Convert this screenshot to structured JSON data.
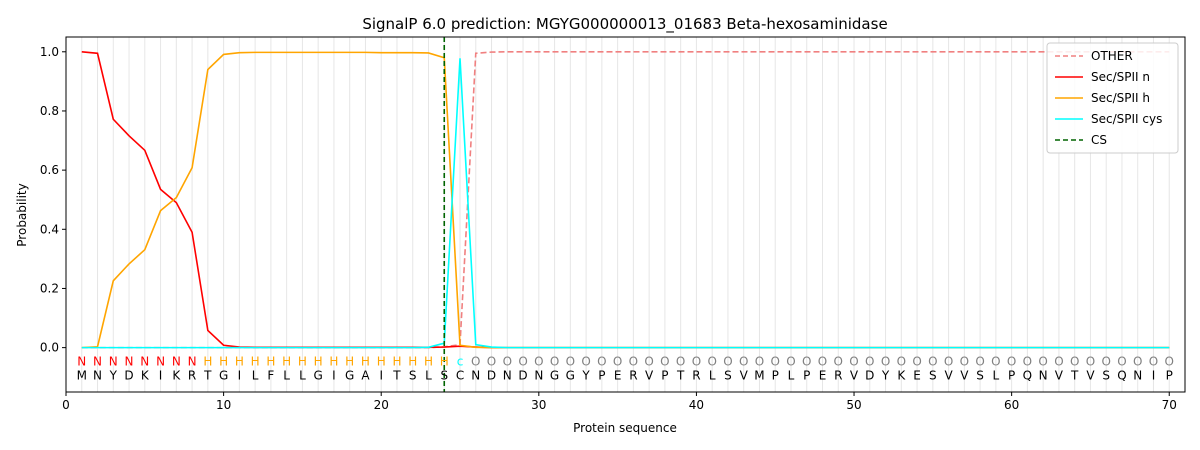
{
  "chart_data": {
    "type": "line",
    "title": "SignalP 6.0 prediction: MGYG000000013_01683 Beta-hexosaminidase",
    "xlabel": "Protein sequence",
    "ylabel": "Probability",
    "xlim": [
      0,
      71
    ],
    "ylim": [
      -0.15,
      1.05
    ],
    "x_ticks": [
      0,
      10,
      20,
      30,
      40,
      50,
      60,
      70
    ],
    "y_ticks": [
      0.0,
      0.2,
      0.4,
      0.6,
      0.8,
      1.0
    ],
    "y_tick_labels": [
      "0.0",
      "0.2",
      "0.4",
      "0.6",
      "0.8",
      "1.0"
    ],
    "grid": "vertical lines at every residue",
    "legend_position": "top-right",
    "sequence": "MNYDKIKRTGILFLLGIGAITSLSCNDNDNGGYPERVPTRLSVMPLPERVDYKESVVSLPQNVTVSQNIP",
    "labels": "NNNNNNNNHHHHHHHHHHHHHHHHcOOOOOOOOOOOOOOOOOOOOOOOOOOOOOOOOOOOOOOOOOOOOO",
    "label_colors": {
      "N": "#ff0000",
      "H": "#ffa500",
      "c": "#00ffff",
      "O": "#808080"
    },
    "cleavage_site": 24,
    "series": [
      {
        "name": "OTHER",
        "color": "#f08080",
        "dash": true,
        "values": [
          0.0,
          0.0,
          0.0,
          0.0,
          0.0,
          0.0,
          0.0,
          0.0,
          0.0,
          0.0,
          0.0,
          0.0,
          0.0,
          0.0,
          0.0,
          0.0,
          0.0,
          0.0,
          0.0,
          0.0,
          0.0,
          0.0,
          0.0,
          0.003,
          0.01,
          0.995,
          0.999,
          1.0,
          1.0,
          1.0,
          1.0,
          1.0,
          1.0,
          1.0,
          1.0,
          1.0,
          1.0,
          1.0,
          1.0,
          1.0,
          1.0,
          1.0,
          1.0,
          1.0,
          1.0,
          1.0,
          1.0,
          1.0,
          1.0,
          1.0,
          1.0,
          1.0,
          1.0,
          1.0,
          1.0,
          1.0,
          1.0,
          1.0,
          1.0,
          1.0,
          1.0,
          1.0,
          1.0,
          1.0,
          1.0,
          1.0,
          1.0,
          1.0,
          1.0,
          1.0
        ]
      },
      {
        "name": "Sec/SPII n",
        "color": "#ff0000",
        "dash": false,
        "values": [
          1.0,
          0.995,
          0.772,
          0.716,
          0.667,
          0.535,
          0.49,
          0.39,
          0.058,
          0.008,
          0.002,
          0.001,
          0.001,
          0.001,
          0.001,
          0.001,
          0.001,
          0.001,
          0.001,
          0.001,
          0.001,
          0.001,
          0.001,
          0.002,
          0.005,
          0.002,
          0.0,
          0.0,
          0.0,
          0.0,
          0.0,
          0.0,
          0.0,
          0.0,
          0.0,
          0.0,
          0.0,
          0.0,
          0.0,
          0.0,
          0.0,
          0.0,
          0.0,
          0.0,
          0.0,
          0.0,
          0.0,
          0.0,
          0.0,
          0.0,
          0.0,
          0.0,
          0.0,
          0.0,
          0.0,
          0.0,
          0.0,
          0.0,
          0.0,
          0.0,
          0.0,
          0.0,
          0.0,
          0.0,
          0.0,
          0.0,
          0.0,
          0.0,
          0.0,
          0.0
        ]
      },
      {
        "name": "Sec/SPII h",
        "color": "#ffa500",
        "dash": false,
        "values": [
          0.0,
          0.003,
          0.226,
          0.283,
          0.331,
          0.463,
          0.507,
          0.608,
          0.94,
          0.991,
          0.997,
          0.998,
          0.998,
          0.998,
          0.998,
          0.998,
          0.998,
          0.998,
          0.998,
          0.997,
          0.997,
          0.997,
          0.996,
          0.98,
          0.008,
          0.001,
          0.0,
          0.0,
          0.0,
          0.0,
          0.0,
          0.0,
          0.0,
          0.0,
          0.0,
          0.0,
          0.0,
          0.0,
          0.0,
          0.0,
          0.0,
          0.0,
          0.0,
          0.0,
          0.0,
          0.0,
          0.0,
          0.0,
          0.0,
          0.0,
          0.0,
          0.0,
          0.0,
          0.0,
          0.0,
          0.0,
          0.0,
          0.0,
          0.0,
          0.0,
          0.0,
          0.0,
          0.0,
          0.0,
          0.0,
          0.0,
          0.0,
          0.0,
          0.0,
          0.0
        ]
      },
      {
        "name": "Sec/SPII cys",
        "color": "#00ffff",
        "dash": false,
        "values": [
          0.0,
          0.0,
          0.0,
          0.0,
          0.0,
          0.0,
          0.0,
          0.0,
          0.0,
          0.0,
          0.0,
          0.0,
          0.0,
          0.0,
          0.0,
          0.0,
          0.0,
          0.0,
          0.0,
          0.0,
          0.0,
          0.0,
          0.001,
          0.015,
          0.978,
          0.01,
          0.002,
          0.0,
          0.0,
          0.0,
          0.0,
          0.0,
          0.0,
          0.0,
          0.0,
          0.0,
          0.0,
          0.0,
          0.0,
          0.0,
          0.0,
          0.0,
          0.0,
          0.0,
          0.0,
          0.0,
          0.0,
          0.0,
          0.0,
          0.0,
          0.0,
          0.0,
          0.0,
          0.0,
          0.0,
          0.0,
          0.0,
          0.0,
          0.0,
          0.0,
          0.0,
          0.0,
          0.0,
          0.0,
          0.0,
          0.0,
          0.0,
          0.0,
          0.0,
          0.0
        ]
      }
    ],
    "legend": [
      {
        "name": "OTHER",
        "color": "#f08080",
        "dash": true
      },
      {
        "name": "Sec/SPII n",
        "color": "#ff0000",
        "dash": false
      },
      {
        "name": "Sec/SPII h",
        "color": "#ffa500",
        "dash": false
      },
      {
        "name": "Sec/SPII cys",
        "color": "#00ffff",
        "dash": false
      },
      {
        "name": "CS",
        "color": "#006400",
        "dash": true
      }
    ]
  }
}
